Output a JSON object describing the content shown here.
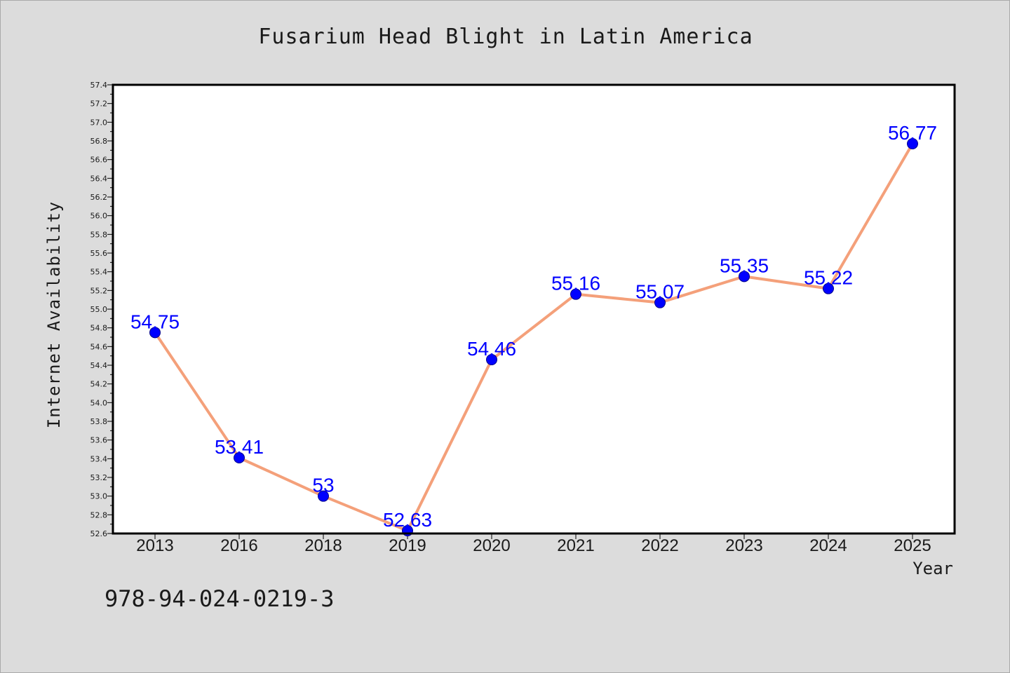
{
  "chart_data": {
    "type": "line",
    "title": "Fusarium Head Blight in Latin America",
    "xlabel": "Year",
    "ylabel": "Internet Availability",
    "categories": [
      "2013",
      "2016",
      "2018",
      "2019",
      "2020",
      "2021",
      "2022",
      "2023",
      "2024",
      "2025"
    ],
    "series": [
      {
        "values": [
          54.75,
          53.41,
          53,
          52.63,
          54.46,
          55.16,
          55.07,
          55.35,
          55.22,
          56.77
        ],
        "value_labels": [
          "54.75",
          "53.41",
          "53",
          "52.63",
          "54.46",
          "55.16",
          "55.07",
          "55.35",
          "55.22",
          "56.77"
        ]
      }
    ],
    "ylim": [
      52.6,
      57.4
    ],
    "yticks": [
      "52.6",
      "52.8",
      "53.0",
      "53.2",
      "53.4",
      "53.6",
      "53.8",
      "54.0",
      "54.2",
      "54.4",
      "54.6",
      "54.8",
      "55.0",
      "55.2",
      "55.4",
      "55.6",
      "55.8",
      "56.0",
      "56.2",
      "56.4",
      "56.6",
      "56.8",
      "57.0",
      "57.2",
      "57.4"
    ],
    "grid": false,
    "colors": {
      "line": "#f4a07a",
      "marker": "#0000ff",
      "label": "#0000ff",
      "plot_bg": "#ffffff",
      "page_bg": "#dcdcdc"
    }
  },
  "footer": {
    "code": "978-94-024-0219-3"
  }
}
